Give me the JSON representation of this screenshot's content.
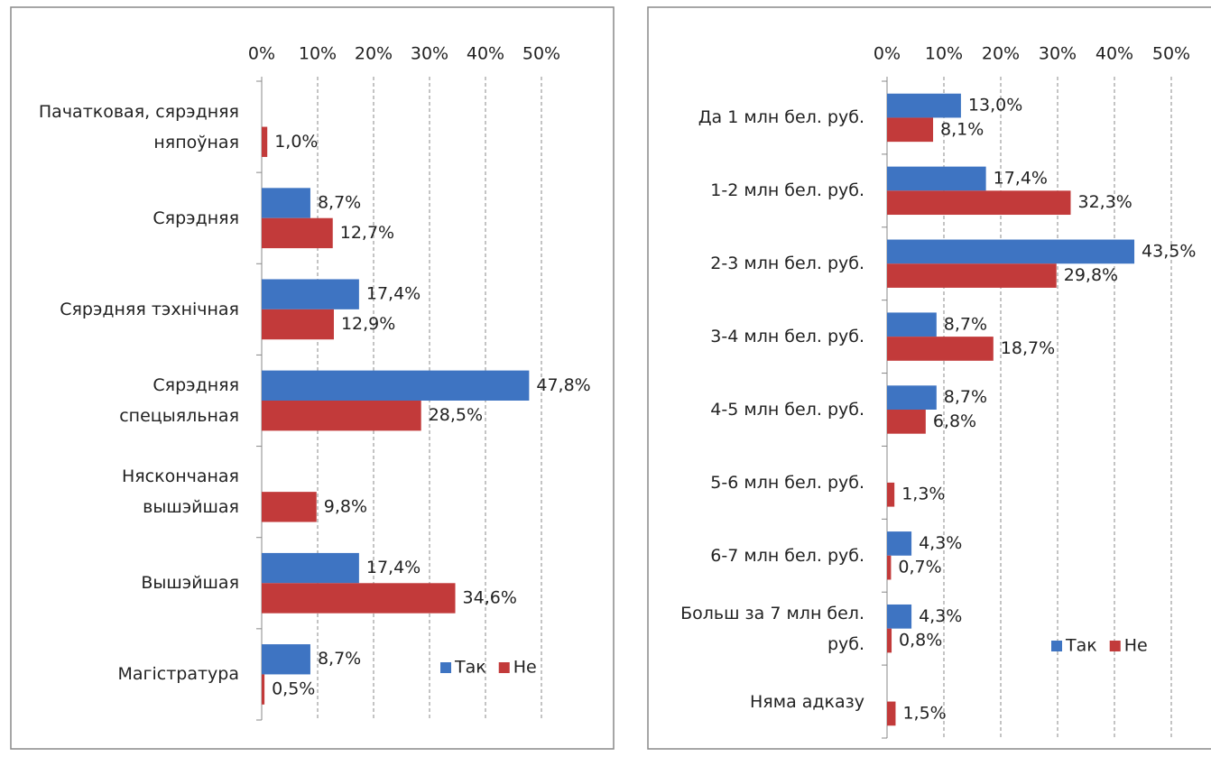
{
  "chart_data": [
    {
      "type": "bar",
      "orientation": "horizontal",
      "categories": [
        "Пачатковая, сярэдняя\nняпоўная",
        "Сярэдняя",
        "Сярэдняя тэхнічная",
        "Сярэдняя \nспецыяльная",
        "Няскончаная\nвышэйшая ",
        "Вышэйшая",
        "Магістратура"
      ],
      "series": [
        {
          "name": "Так",
          "color": "#3e74c2",
          "values": [
            null,
            8.7,
            17.4,
            47.8,
            null,
            17.4,
            8.7
          ],
          "value_labels": [
            null,
            "8,7%",
            "17,4%",
            "47,8%",
            null,
            "17,4%",
            "8,7%"
          ]
        },
        {
          "name": "Не",
          "color": "#c23a3a",
          "values": [
            1.0,
            12.7,
            12.9,
            28.5,
            9.8,
            34.6,
            0.5
          ],
          "value_labels": [
            "1,0%",
            "12,7%",
            "12,9%",
            "28,5%",
            "9,8%",
            "34,6%",
            "0,5%"
          ]
        }
      ],
      "xlim": [
        0,
        50
      ],
      "xticks": [
        {
          "value": 0,
          "label": "0%"
        },
        {
          "value": 10,
          "label": "10%"
        },
        {
          "value": 20,
          "label": "20%"
        },
        {
          "value": 30,
          "label": "30%"
        },
        {
          "value": 40,
          "label": "40%"
        },
        {
          "value": 50,
          "label": "50%"
        }
      ],
      "grid": true,
      "legend": "right"
    },
    {
      "type": "bar",
      "orientation": "horizontal",
      "categories": [
        "Да 1 млн бел. руб.",
        "1-2 млн бел. руб.",
        "2-3 млн бел. руб.",
        "3-4 млн бел. руб.",
        "4-5 млн бел. руб.",
        "5-6 млн бел. руб.",
        "6-7 млн бел. руб.",
        "Больш за 7 млн бел.\nруб.",
        "Няма адказу"
      ],
      "series": [
        {
          "name": "Так",
          "color": "#3e74c2",
          "values": [
            13.0,
            17.4,
            43.5,
            8.7,
            8.7,
            null,
            4.3,
            4.3,
            null
          ],
          "value_labels": [
            "13,0%",
            "17,4%",
            "43,5%",
            "8,7%",
            "8,7%",
            null,
            "4,3%",
            "4,3%",
            null
          ]
        },
        {
          "name": "Не",
          "color": "#c23a3a",
          "values": [
            8.1,
            32.3,
            29.8,
            18.7,
            6.8,
            1.3,
            0.7,
            0.8,
            1.5
          ],
          "value_labels": [
            "8,1%",
            "32,3%",
            "29,8%",
            "18,7%",
            "6,8%",
            "1,3%",
            "0,7%",
            "0,8%",
            "1,5%"
          ]
        }
      ],
      "xlim": [
        0,
        50
      ],
      "xticks": [
        {
          "value": 0,
          "label": "0%"
        },
        {
          "value": 10,
          "label": "10%"
        },
        {
          "value": 20,
          "label": "20%"
        },
        {
          "value": 30,
          "label": "30%"
        },
        {
          "value": 40,
          "label": "40%"
        },
        {
          "value": 50,
          "label": "50%"
        }
      ],
      "grid": true,
      "legend": "right"
    }
  ]
}
